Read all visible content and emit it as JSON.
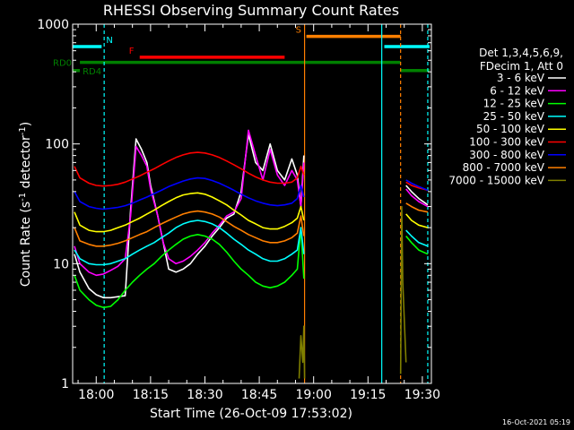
{
  "chart_data": {
    "type": "line",
    "title": "RHESSI Observing Summary Count Rates",
    "xlabel": "Start Time (26-Oct-09 17:53:02)",
    "ylabel": "Count Rate (s",
    "ylabel_sup1": "-1",
    "ylabel_mid": " detector",
    "ylabel_sup2": "-1",
    "ylabel_end": ")",
    "y_scale": "log",
    "ylim": [
      1,
      1000
    ],
    "xlim_minutes": [
      -6.5,
      32.5
    ],
    "x_ticks": [
      {
        "v": 0,
        "label": "18:00"
      },
      {
        "v": 15,
        "label": "18:15"
      },
      {
        "v": 30,
        "label": "18:30"
      },
      {
        "v": 45,
        "label": "18:45"
      },
      {
        "v": 60,
        "label": "19:00"
      },
      {
        "v": 75,
        "label": "19:15"
      },
      {
        "v": 90,
        "label": "19:30"
      }
    ],
    "y_ticks": [
      {
        "v": 1,
        "label": "1"
      },
      {
        "v": 10,
        "label": "10"
      },
      {
        "v": 100,
        "label": "100"
      },
      {
        "v": 1000,
        "label": "1000"
      }
    ],
    "legend_header": [
      "Det 1,3,4,5,6,9,",
      "FDecim 1, Att 0"
    ],
    "timestamp": "16-Oct-2021 05:19",
    "colors": {
      "background": "#000000",
      "axes": "#ffffff",
      "N": "#00ffff",
      "F": "#ff0000",
      "S": "#ff7f00",
      "RD": "#008000"
    },
    "flag_bars": [
      {
        "label": "N",
        "color": "#00ffff",
        "y": 650,
        "segments": [
          [
            -6.5,
            1.5
          ],
          [
            79.5,
            92
          ]
        ]
      },
      {
        "label": "F",
        "color": "#ff0000",
        "y": 530,
        "segments": [
          [
            12,
            52
          ]
        ]
      },
      {
        "label": "S",
        "color": "#ff7f00",
        "y": 790,
        "segments": [
          [
            58,
            84
          ]
        ]
      },
      {
        "label": "RD0",
        "color": "#008000",
        "y": 480,
        "segments": [
          [
            -4.5,
            84
          ]
        ]
      },
      {
        "label": "RD4",
        "color": "#008000",
        "y": 410,
        "segments": [
          [
            -6.5,
            -4.5
          ],
          [
            84,
            92
          ]
        ]
      }
    ],
    "vertical_lines": [
      {
        "x": 2.2,
        "color": "#00ffff",
        "dashed": true
      },
      {
        "x": 57.5,
        "color": "#ff7f00",
        "dashed": false
      },
      {
        "x": 78.8,
        "color": "#00ffff",
        "dashed": false
      },
      {
        "x": 84,
        "color": "#ff7f00",
        "dashed": true
      },
      {
        "x": 91.5,
        "color": "#00ffff",
        "dashed": true
      }
    ],
    "series": [
      {
        "name": "3 - 6 keV",
        "color": "#ffffff",
        "x": [
          -6.0,
          -4.5,
          -2.0,
          0.0,
          2.0,
          4.0,
          6.0,
          8.0,
          9.5,
          11.0,
          12.5,
          14.0,
          15.0,
          17.0,
          18.5,
          20.0,
          22.0,
          24.0,
          26.0,
          28.0,
          30.0,
          32.0,
          34.0,
          36.0,
          38.0,
          40.0,
          42.0,
          44.0,
          46.0,
          48.0,
          50.0,
          52.0,
          54.0,
          55.5,
          56.5,
          57.3,
          85.5,
          87.0,
          89.0,
          91.5
        ],
        "y": [
          12,
          8.5,
          6.2,
          5.5,
          5.2,
          5.2,
          5.3,
          5.4,
          28,
          110,
          90,
          70,
          45,
          25,
          15,
          9,
          8.5,
          9,
          10,
          12,
          14,
          17,
          20,
          24,
          26,
          40,
          120,
          70,
          60,
          100,
          60,
          50,
          75,
          55,
          30,
          80,
          45,
          40,
          35,
          31
        ]
      },
      {
        "name": "6 - 12 keV",
        "color": "#ff00ff",
        "x": [
          -6.0,
          -4.5,
          -2.0,
          0.0,
          2.0,
          4.0,
          6.0,
          8.0,
          9.5,
          11.0,
          12.5,
          14.0,
          15.0,
          17.0,
          18.5,
          20.0,
          22.0,
          24.0,
          26.0,
          28.0,
          30.0,
          32.0,
          34.0,
          36.0,
          38.0,
          40.0,
          42.0,
          44.0,
          46.0,
          48.0,
          50.0,
          52.0,
          54.0,
          55.5,
          56.5,
          57.3,
          85.5,
          87.0,
          89.0,
          91.5
        ],
        "y": [
          14,
          10,
          8.5,
          8,
          8.2,
          8.8,
          9.5,
          11,
          25,
          95,
          80,
          65,
          42,
          25,
          15,
          11,
          10,
          10.5,
          11.5,
          13,
          15,
          18,
          21,
          25,
          27,
          35,
          130,
          80,
          50,
          90,
          55,
          45,
          60,
          50,
          30,
          70,
          42,
          37,
          33,
          30
        ]
      },
      {
        "name": "12 - 25 keV",
        "color": "#00ff00",
        "x": [
          -6.0,
          -4.5,
          -2.0,
          0.0,
          2.0,
          4.0,
          6.0,
          8.0,
          10.0,
          12.0,
          14.0,
          16.0,
          18.0,
          20.0,
          22.0,
          24.0,
          26.0,
          28.0,
          30.0,
          32.0,
          34.0,
          36.0,
          38.0,
          40.0,
          42.0,
          44.0,
          46.0,
          48.0,
          50.0,
          52.0,
          54.0,
          55.5,
          56.5,
          57.3,
          85.5,
          87.0,
          89.0,
          91.5
        ],
        "y": [
          8,
          6,
          5,
          4.5,
          4.3,
          4.4,
          5,
          6,
          7,
          8,
          9,
          10,
          11.5,
          13,
          14.5,
          16,
          17,
          17.5,
          17,
          16,
          14.5,
          12.5,
          10.5,
          9,
          8,
          7,
          6.5,
          6.3,
          6.5,
          7,
          8,
          9,
          20,
          7.5,
          17,
          15,
          13,
          12
        ]
      },
      {
        "name": "25 - 50 keV",
        "color": "#00ffff",
        "x": [
          -6.0,
          -4.5,
          -2.0,
          0.0,
          2.0,
          4.0,
          6.0,
          8.0,
          10.0,
          12.0,
          14.0,
          16.0,
          18.0,
          20.0,
          22.0,
          24.0,
          26.0,
          28.0,
          30.0,
          32.0,
          34.0,
          36.0,
          38.0,
          40.0,
          42.0,
          44.0,
          46.0,
          48.0,
          50.0,
          52.0,
          54.0,
          55.5,
          56.5,
          57.3,
          85.5,
          87.0,
          89.0,
          91.5
        ],
        "y": [
          13,
          11,
          10,
          9.8,
          9.8,
          10,
          10.5,
          11,
          12,
          13,
          14,
          15,
          16.5,
          18,
          20,
          21.5,
          22.5,
          23,
          22.5,
          21.5,
          20,
          18,
          16,
          14.5,
          13,
          12,
          11,
          10.5,
          10.5,
          11,
          12,
          13,
          20,
          12,
          19,
          17,
          15,
          14
        ]
      },
      {
        "name": "50 - 100 keV",
        "color": "#ffff00",
        "x": [
          -6.0,
          -4.5,
          -2.0,
          0.0,
          2.0,
          4.0,
          6.0,
          8.0,
          10.0,
          12.0,
          14.0,
          16.0,
          18.0,
          20.0,
          22.0,
          24.0,
          26.0,
          28.0,
          30.0,
          32.0,
          34.0,
          36.0,
          38.0,
          40.0,
          42.0,
          44.0,
          46.0,
          48.0,
          50.0,
          52.0,
          54.0,
          55.5,
          56.5,
          57.3,
          85.5,
          87.0,
          89.0,
          91.5
        ],
        "y": [
          27,
          21,
          19,
          18.5,
          18.5,
          19,
          20,
          21,
          22.5,
          24,
          26,
          28,
          30.5,
          33,
          35.5,
          37.5,
          38.5,
          39,
          38,
          36,
          33.5,
          31,
          28,
          25.5,
          23,
          21.5,
          20,
          19.5,
          19.5,
          20.5,
          22,
          24,
          30,
          23,
          26,
          23,
          21,
          20
        ]
      },
      {
        "name": "100 - 300 keV",
        "color": "#ff0000",
        "x": [
          -6.0,
          -4.5,
          -2.0,
          0.0,
          2.0,
          4.0,
          6.0,
          8.0,
          10.0,
          12.0,
          14.0,
          16.0,
          18.0,
          20.0,
          22.0,
          24.0,
          26.0,
          28.0,
          30.0,
          32.0,
          34.0,
          36.0,
          38.0,
          40.0,
          42.0,
          44.0,
          46.0,
          48.0,
          50.0,
          52.0,
          54.0,
          55.5,
          56.5,
          57.3,
          85.5,
          87.0,
          89.0,
          91.5
        ],
        "y": [
          65,
          52,
          47,
          45,
          44.5,
          45,
          46,
          48,
          51,
          54,
          58,
          62,
          67,
          72,
          77,
          81,
          84,
          85,
          84,
          81,
          77,
          72,
          67,
          62,
          57,
          53,
          50,
          48,
          47,
          47,
          48,
          52,
          65,
          55,
          48,
          45,
          43,
          41
        ]
      },
      {
        "name": "300 - 800 keV",
        "color": "#0000ff",
        "x": [
          -6.0,
          -4.5,
          -2.0,
          0.0,
          2.0,
          4.0,
          6.0,
          8.0,
          10.0,
          12.0,
          14.0,
          16.0,
          18.0,
          20.0,
          22.0,
          24.0,
          26.0,
          28.0,
          30.0,
          32.0,
          34.0,
          36.0,
          38.0,
          40.0,
          42.0,
          44.0,
          46.0,
          48.0,
          50.0,
          52.0,
          54.0,
          55.5,
          56.5,
          57.3,
          85.5,
          87.0,
          89.0,
          91.5
        ],
        "y": [
          40,
          33,
          30,
          29,
          28.5,
          29,
          29.5,
          30.5,
          32,
          34,
          36,
          38.5,
          41,
          44,
          46.5,
          49,
          51,
          52,
          51.5,
          49.5,
          47,
          44,
          41,
          38,
          35.5,
          33.5,
          32,
          31,
          30.5,
          31,
          32,
          35,
          45,
          36,
          50,
          47,
          44,
          41
        ]
      },
      {
        "name": "800 - 7000 keV",
        "color": "#ff7f00",
        "x": [
          -6.0,
          -4.5,
          -2.0,
          0.0,
          2.0,
          4.0,
          6.0,
          8.0,
          10.0,
          12.0,
          14.0,
          16.0,
          18.0,
          20.0,
          22.0,
          24.0,
          26.0,
          28.0,
          30.0,
          32.0,
          34.0,
          36.0,
          38.0,
          40.0,
          42.0,
          44.0,
          46.0,
          48.0,
          50.0,
          52.0,
          54.0,
          55.5,
          56.5,
          57.3,
          85.5,
          87.0,
          89.0,
          91.5
        ],
        "y": [
          20,
          15.5,
          14.5,
          14,
          14,
          14.3,
          14.8,
          15.5,
          16.5,
          17.5,
          18.5,
          20,
          21.5,
          23,
          24.5,
          26,
          27,
          27.5,
          27,
          26,
          24.5,
          22.5,
          20.5,
          19,
          17.5,
          16.5,
          15.5,
          15,
          15,
          15.5,
          16.5,
          18,
          25,
          17,
          32,
          30,
          28,
          27
        ]
      },
      {
        "name": "7000 - 15000 keV",
        "color": "#7f7f00",
        "x": [
          56.0,
          56.5,
          57.0,
          57.3,
          57.5,
          84.0,
          84.3,
          84.6,
          85.5
        ],
        "y": [
          1.1,
          2.5,
          1.5,
          3,
          1.1,
          1.2,
          30,
          7,
          1.5
        ]
      }
    ]
  }
}
